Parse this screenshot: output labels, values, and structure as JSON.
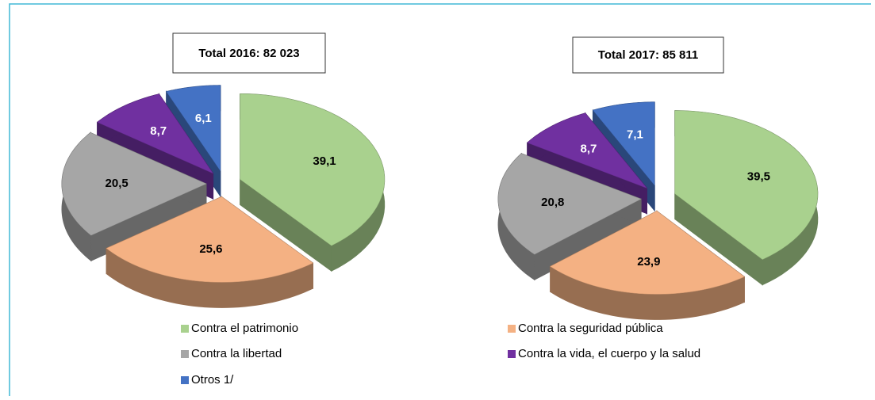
{
  "legend": {
    "categories": [
      "Contra el patrimonio",
      "Contra la seguridad pública",
      "Contra la libertad",
      "Contra la vida, el cuerpo y la  salud",
      "Otros 1/"
    ],
    "colors": [
      "#a9d18e",
      "#f4b183",
      "#a6a6a6",
      "#7030a0",
      "#4472c4"
    ]
  },
  "chart_data": [
    {
      "type": "pie",
      "title": "Total 2016: 82 023",
      "values": [
        39.1,
        25.6,
        20.5,
        8.7,
        6.1
      ],
      "value_labels": [
        "39,1",
        "25,6",
        "20,5",
        "8,7",
        "6,1"
      ]
    },
    {
      "type": "pie",
      "title": "Total 2017: 85 811",
      "values": [
        39.5,
        23.9,
        20.8,
        8.7,
        7.1
      ],
      "value_labels": [
        "39,5",
        "23,9",
        "20,8",
        "8,7",
        "7,1"
      ]
    }
  ]
}
